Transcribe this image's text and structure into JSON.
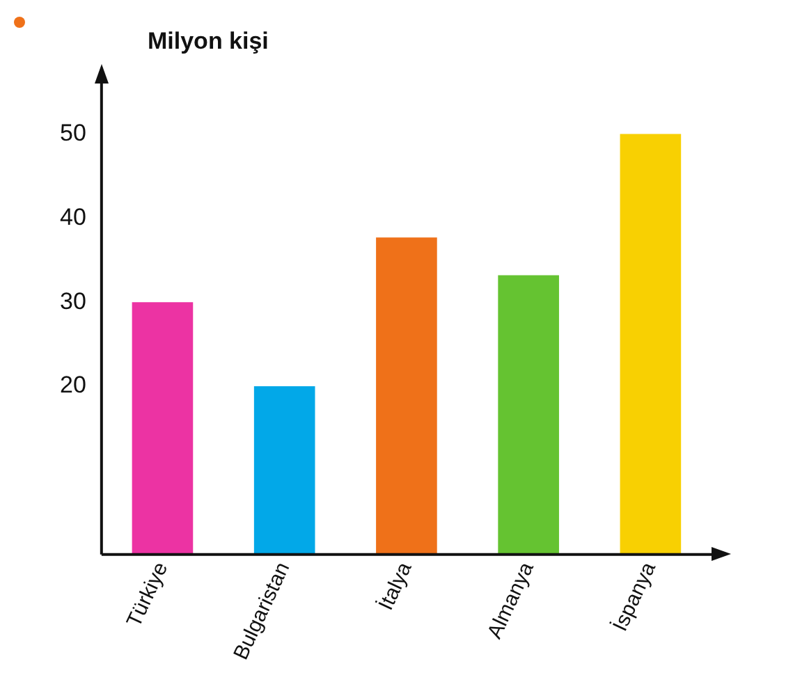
{
  "chart_data": {
    "type": "bar",
    "ylabel": "Milyon kişi",
    "categories": [
      "Türkiye",
      "Bulgaristan",
      "İtalya",
      "Almanya",
      "İspanya"
    ],
    "values": [
      30,
      20,
      37.7,
      33.2,
      50
    ],
    "colors": [
      "#ec33a3",
      "#02a8e8",
      "#ef7119",
      "#65c331",
      "#f8d002"
    ],
    "ylim": [
      0,
      56
    ],
    "yticks": [
      20,
      30,
      40,
      50
    ],
    "grid": false,
    "legend": false
  }
}
